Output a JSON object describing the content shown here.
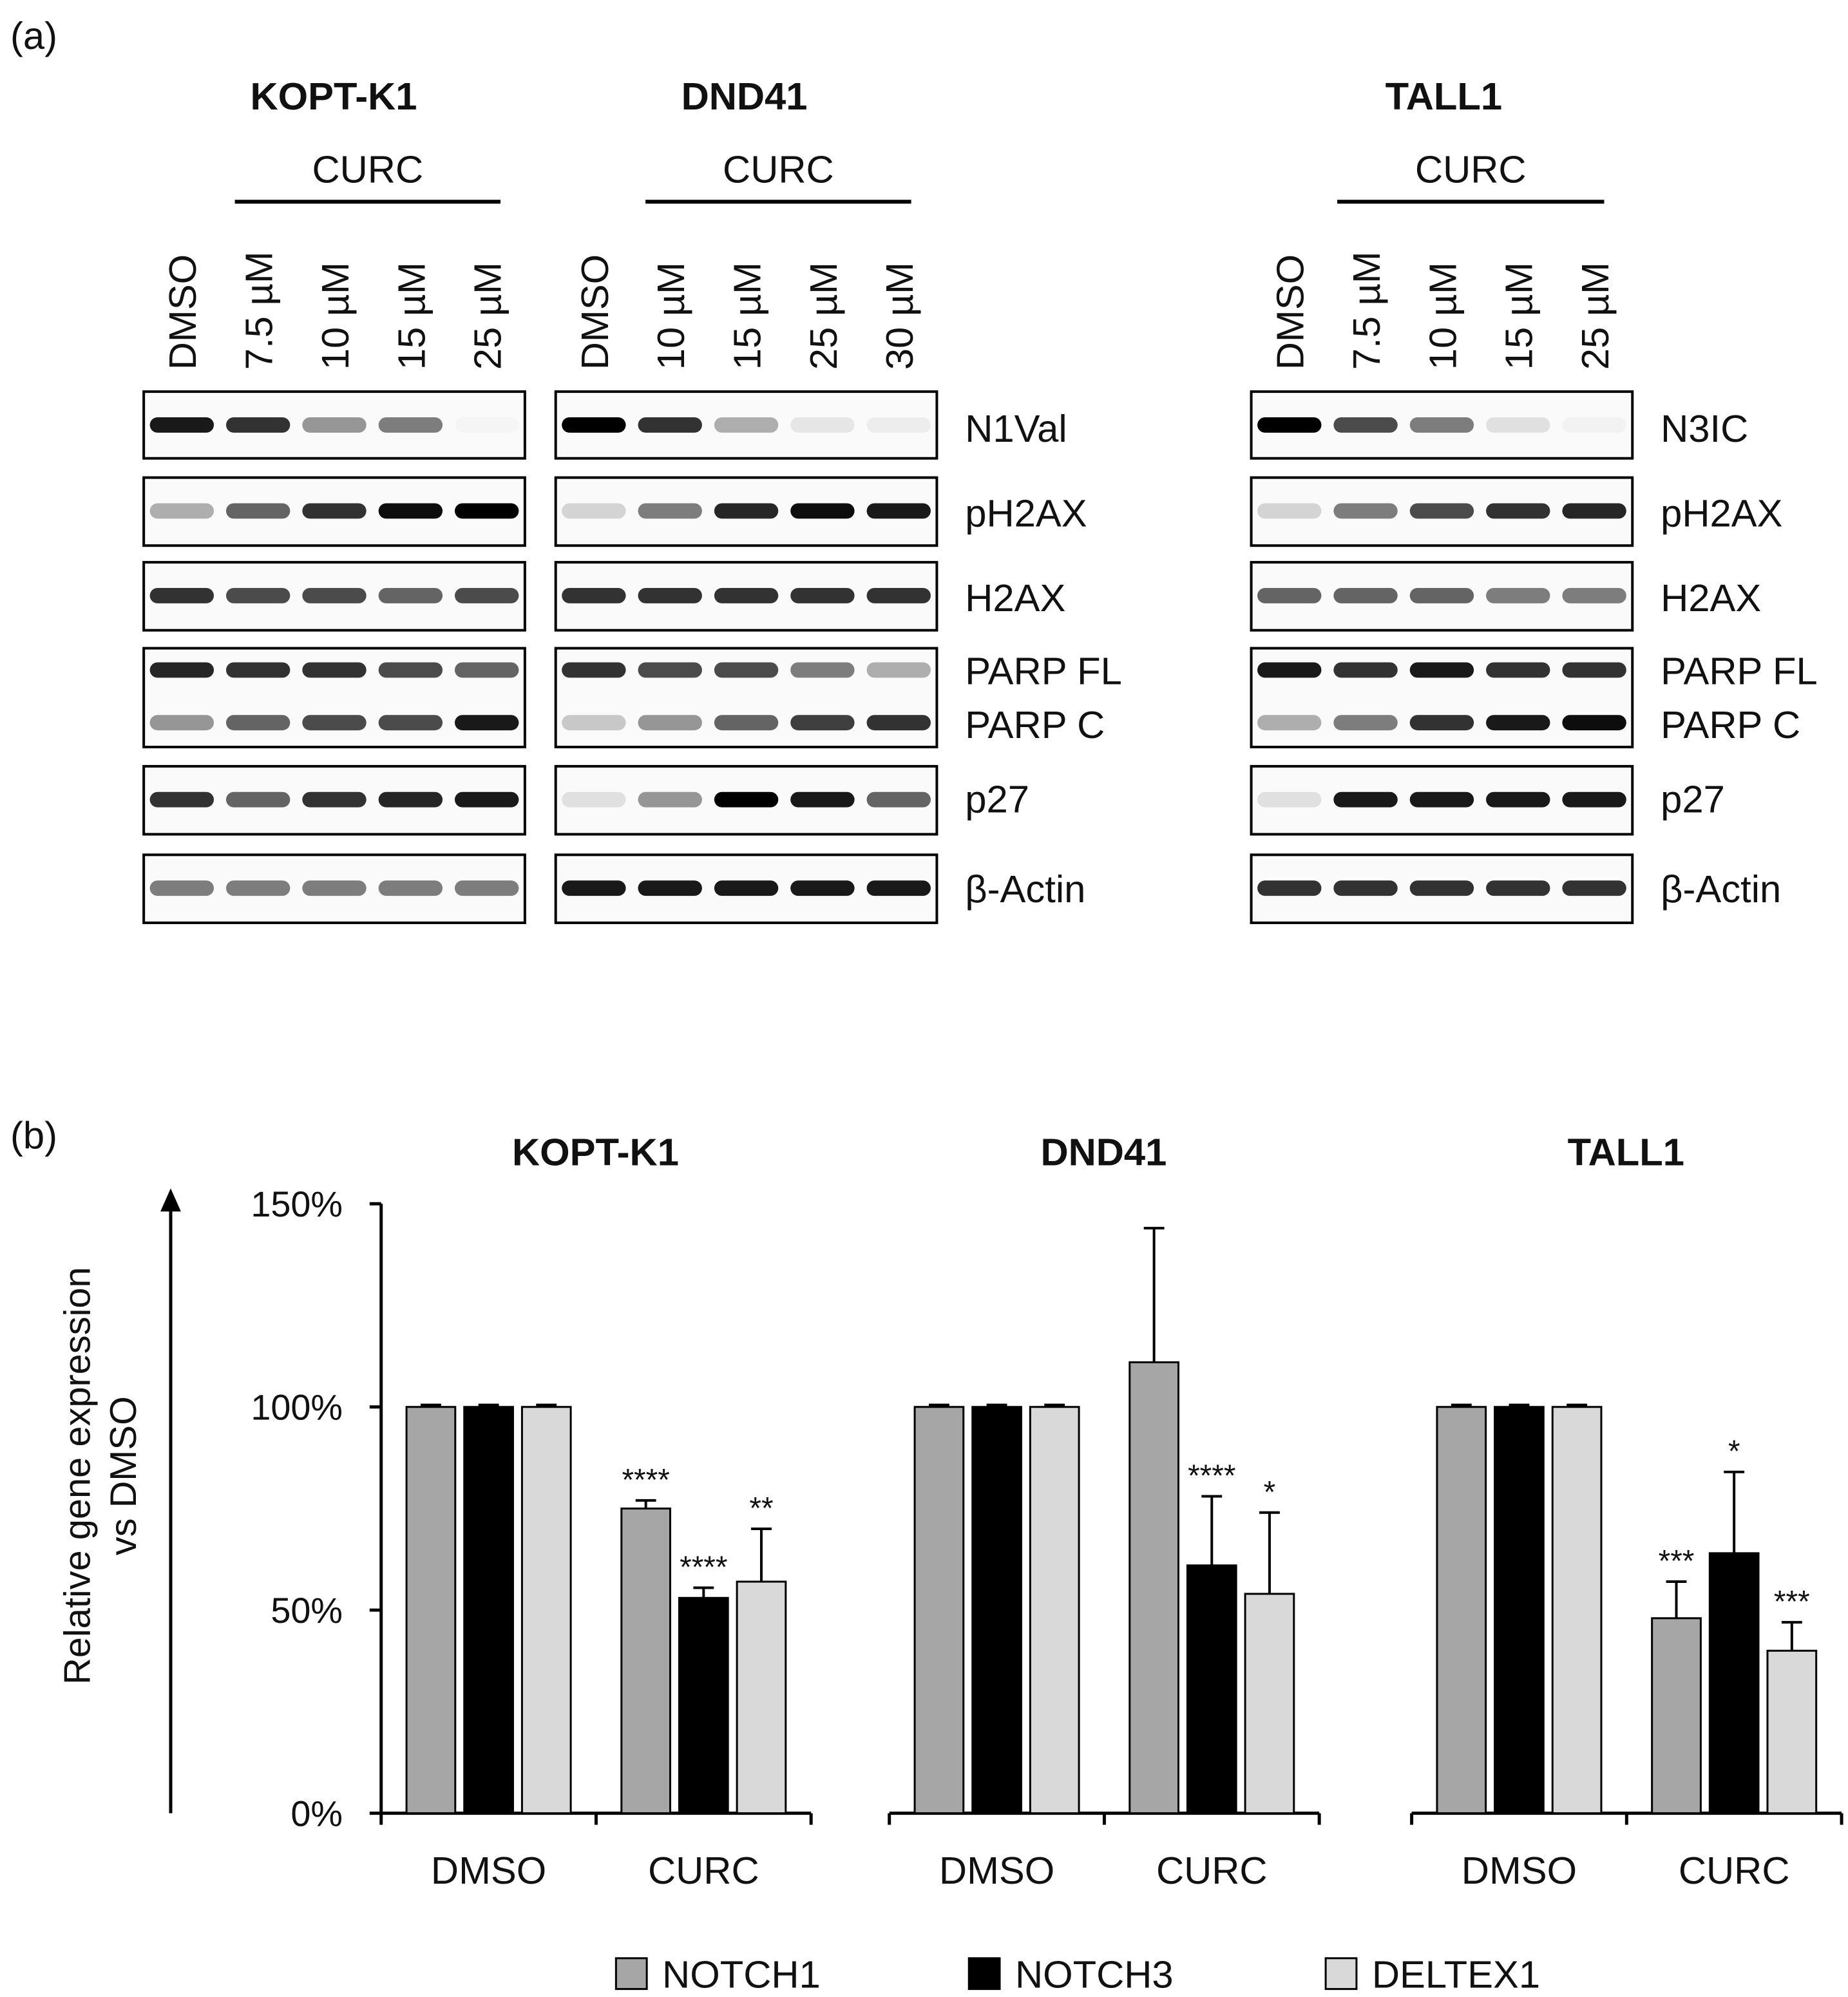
{
  "panel_a": {
    "label": "(a)",
    "blots": [
      {
        "title": "KOPT-K1",
        "treatment": "CURC",
        "lanes": [
          "DMSO",
          "7.5 µM",
          "10 µM",
          "15 µM",
          "25 µM"
        ]
      },
      {
        "title": "DND41",
        "treatment": "CURC",
        "lanes": [
          "DMSO",
          "10 µM",
          "15 µM",
          "25 µM",
          "30 µM"
        ],
        "proteins": [
          "N1Val",
          "pH2AX",
          "H2AX",
          "PARP FL",
          "PARP C",
          "p27",
          "β-Actin"
        ]
      },
      {
        "title": "TALL1",
        "treatment": "CURC",
        "lanes": [
          "DMSO",
          "7.5 µM",
          "10 µM",
          "15 µM",
          "25 µM"
        ],
        "proteins": [
          "N3IC",
          "pH2AX",
          "H2AX",
          "PARP FL",
          "PARP C",
          "p27",
          "β-Actin"
        ]
      }
    ]
  },
  "panel_b": {
    "label": "(b)",
    "y_label": [
      "Relative gene expression",
      "vs DMSO"
    ]
  },
  "chart_data": [
    {
      "type": "bar",
      "title": "KOPT-K1",
      "categories": [
        "DMSO",
        "CURC"
      ],
      "ylim": [
        0,
        150
      ],
      "yticks": [
        {
          "value": 0,
          "label": "0%"
        },
        {
          "value": 50,
          "label": "50%"
        },
        {
          "value": 100,
          "label": "100%"
        },
        {
          "value": 150,
          "label": "150%"
        }
      ],
      "series": [
        {
          "name": "NOTCH1",
          "color": "#a6a6a6",
          "values": [
            100,
            75
          ],
          "errors": [
            0.5,
            2
          ],
          "significance": [
            null,
            "****"
          ]
        },
        {
          "name": "NOTCH3",
          "color": "#000000",
          "values": [
            100,
            53
          ],
          "errors": [
            0.5,
            2.5
          ],
          "significance": [
            null,
            "****"
          ]
        },
        {
          "name": "DELTEX1",
          "color": "#d9d9d9",
          "values": [
            100,
            57
          ],
          "errors": [
            0.5,
            13
          ],
          "significance": [
            null,
            "**"
          ]
        }
      ]
    },
    {
      "type": "bar",
      "title": "DND41",
      "categories": [
        "DMSO",
        "CURC"
      ],
      "ylim": [
        0,
        150
      ],
      "series": [
        {
          "color": "#a6a6a6",
          "values": [
            100,
            111
          ],
          "errors": [
            0.5,
            33
          ],
          "significance": [
            null,
            null
          ]
        },
        {
          "color": "#000000",
          "values": [
            100,
            61
          ],
          "errors": [
            0.5,
            17
          ],
          "significance": [
            null,
            "****"
          ]
        },
        {
          "color": "#d9d9d9",
          "values": [
            100,
            54
          ],
          "errors": [
            0.5,
            20
          ],
          "significance": [
            null,
            "*"
          ]
        }
      ]
    },
    {
      "type": "bar",
      "title": "TALL1",
      "categories": [
        "DMSO",
        "CURC"
      ],
      "ylim": [
        0,
        150
      ],
      "series": [
        {
          "color": "#a6a6a6",
          "values": [
            100,
            48
          ],
          "errors": [
            0.5,
            9
          ],
          "significance": [
            null,
            "***"
          ]
        },
        {
          "color": "#000000",
          "values": [
            100,
            64
          ],
          "errors": [
            0.5,
            20
          ],
          "significance": [
            null,
            "*"
          ]
        },
        {
          "color": "#d9d9d9",
          "values": [
            100,
            40
          ],
          "errors": [
            0.5,
            7
          ],
          "significance": [
            null,
            "***"
          ]
        }
      ]
    }
  ]
}
